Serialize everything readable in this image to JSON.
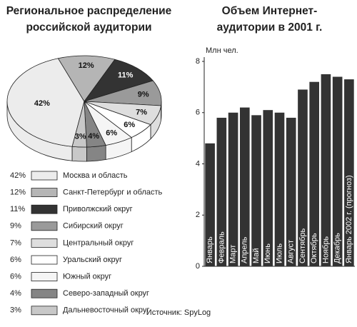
{
  "chart_data": [
    {
      "type": "pie",
      "title": "Региональное распределение российской аудитории",
      "categories": [
        "Москва и область",
        "Санкт-Петербург и область",
        "Приволжский округ",
        "Сибирский округ",
        "Центральный округ",
        "Уральский округ",
        "Южный округ",
        "Северо-западный округ",
        "Дальневосточный округ"
      ],
      "values": [
        42,
        12,
        11,
        9,
        7,
        6,
        6,
        4,
        3
      ],
      "value_labels": [
        "42%",
        "12%",
        "11%",
        "9%",
        "7%",
        "6%",
        "6%",
        "4%",
        "3%"
      ],
      "colors": [
        "#ececec",
        "#b5b5b5",
        "#333333",
        "#9a9a9a",
        "#dedede",
        "#ffffff",
        "#f5f5f5",
        "#858585",
        "#c8c8c8"
      ]
    },
    {
      "type": "bar",
      "title": "Объем Интернет-аудитории в 2001 г.",
      "ylabel": "Млн чел.",
      "categories": [
        "Январь",
        "Февраль",
        "Март",
        "Апрель",
        "Май",
        "Июнь",
        "Июль",
        "Август",
        "Сентябрь",
        "Октябрь",
        "Ноябрь",
        "Декабрь",
        "Январь 2002 г. (прогноз)"
      ],
      "values": [
        4.8,
        5.8,
        6.0,
        6.2,
        5.9,
        6.1,
        6.0,
        5.8,
        6.9,
        7.2,
        7.5,
        7.4,
        7.3
      ],
      "color": "#333333",
      "ylim": [
        0,
        8
      ],
      "yticks": [
        0,
        2,
        4,
        6,
        8
      ]
    }
  ],
  "source": "Источник: SpyLog"
}
